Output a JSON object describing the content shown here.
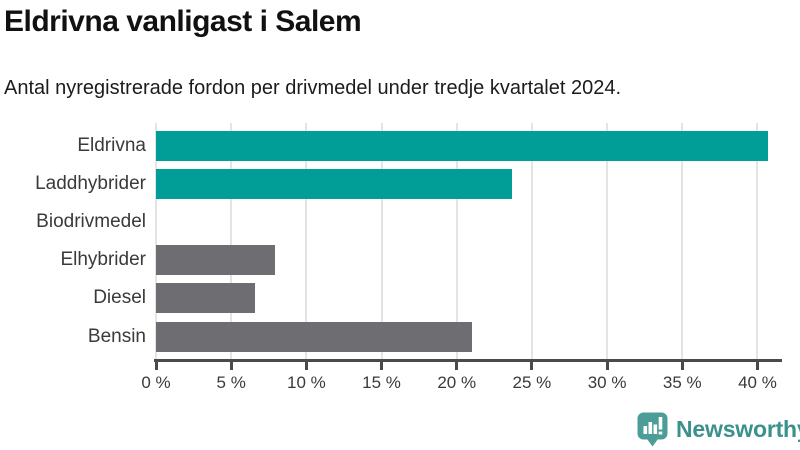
{
  "header": {
    "title": "Eldrivna vanligast i Salem",
    "subtitle": "Antal nyregistrerade fordon per drivmedel under tredje kvartalet 2024."
  },
  "chart_data": {
    "type": "bar",
    "orientation": "horizontal",
    "title": "Eldrivna vanligast i Salem",
    "xlabel": "",
    "ylabel": "",
    "categories": [
      "Eldrivna",
      "Laddhybrider",
      "Biodrivmedel",
      "Elhybrider",
      "Diesel",
      "Bensin"
    ],
    "values": [
      40.7,
      23.7,
      0,
      7.9,
      6.6,
      21.0
    ],
    "unit": "%",
    "bar_colors": [
      "#009e96",
      "#009e96",
      "#6d6d72",
      "#6d6d72",
      "#6d6d72",
      "#6d6d72"
    ],
    "highlight_color": "#009e96",
    "default_color": "#6d6d72",
    "xlim": [
      0,
      41.7
    ],
    "x_ticks": [
      0,
      5,
      10,
      15,
      20,
      25,
      30,
      35,
      40
    ],
    "x_tick_labels": [
      "0 %",
      "5 %",
      "10 %",
      "15 %",
      "20 %",
      "25 %",
      "30 %",
      "35 %",
      "40 %"
    ],
    "grid": true,
    "gridline_color": "#e4e4e4",
    "axis_color": "#4a4a4a",
    "legend": "none"
  },
  "footer": {
    "brand": "Newsworthy",
    "brand_color": "#3b918c",
    "icon_color": "#4c9d97",
    "icon": "newsworthy-speech-bubble-barchart-icon"
  }
}
